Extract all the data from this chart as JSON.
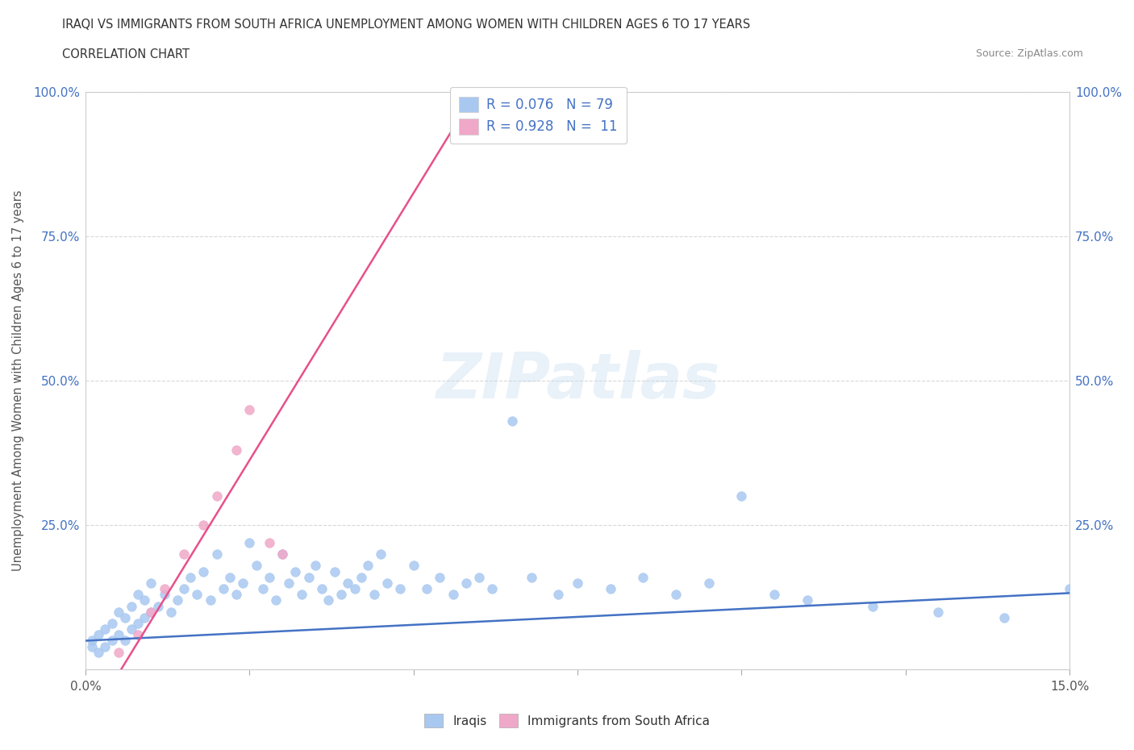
{
  "title": "IRAQI VS IMMIGRANTS FROM SOUTH AFRICA UNEMPLOYMENT AMONG WOMEN WITH CHILDREN AGES 6 TO 17 YEARS",
  "subtitle": "CORRELATION CHART",
  "source": "Source: ZipAtlas.com",
  "ylabel": "Unemployment Among Women with Children Ages 6 to 17 years",
  "xlim": [
    0.0,
    0.15
  ],
  "ylim": [
    0.0,
    1.0
  ],
  "iraqis_x": [
    0.001,
    0.001,
    0.002,
    0.002,
    0.003,
    0.003,
    0.004,
    0.004,
    0.005,
    0.005,
    0.006,
    0.006,
    0.007,
    0.007,
    0.008,
    0.008,
    0.009,
    0.009,
    0.01,
    0.01,
    0.011,
    0.012,
    0.013,
    0.014,
    0.015,
    0.016,
    0.017,
    0.018,
    0.019,
    0.02,
    0.021,
    0.022,
    0.023,
    0.024,
    0.025,
    0.026,
    0.027,
    0.028,
    0.029,
    0.03,
    0.031,
    0.032,
    0.033,
    0.034,
    0.035,
    0.036,
    0.037,
    0.038,
    0.039,
    0.04,
    0.041,
    0.042,
    0.043,
    0.044,
    0.045,
    0.046,
    0.048,
    0.05,
    0.052,
    0.054,
    0.056,
    0.058,
    0.06,
    0.062,
    0.065,
    0.068,
    0.072,
    0.075,
    0.08,
    0.085,
    0.09,
    0.095,
    0.1,
    0.105,
    0.11,
    0.12,
    0.13,
    0.14,
    0.15
  ],
  "iraqis_y": [
    0.04,
    0.05,
    0.03,
    0.06,
    0.04,
    0.07,
    0.05,
    0.08,
    0.06,
    0.1,
    0.05,
    0.09,
    0.07,
    0.11,
    0.08,
    0.13,
    0.09,
    0.12,
    0.1,
    0.15,
    0.11,
    0.13,
    0.1,
    0.12,
    0.14,
    0.16,
    0.13,
    0.17,
    0.12,
    0.2,
    0.14,
    0.16,
    0.13,
    0.15,
    0.22,
    0.18,
    0.14,
    0.16,
    0.12,
    0.2,
    0.15,
    0.17,
    0.13,
    0.16,
    0.18,
    0.14,
    0.12,
    0.17,
    0.13,
    0.15,
    0.14,
    0.16,
    0.18,
    0.13,
    0.2,
    0.15,
    0.14,
    0.18,
    0.14,
    0.16,
    0.13,
    0.15,
    0.16,
    0.14,
    0.43,
    0.16,
    0.13,
    0.15,
    0.14,
    0.16,
    0.13,
    0.15,
    0.3,
    0.13,
    0.12,
    0.11,
    0.1,
    0.09,
    0.14
  ],
  "sa_x": [
    0.005,
    0.008,
    0.01,
    0.012,
    0.015,
    0.018,
    0.02,
    0.023,
    0.025,
    0.028,
    0.03
  ],
  "sa_y": [
    0.03,
    0.06,
    0.1,
    0.14,
    0.2,
    0.25,
    0.3,
    0.38,
    0.45,
    0.22,
    0.2
  ],
  "iraqis_color": "#a8c8f0",
  "sa_color": "#f0a8c8",
  "iraqis_line_color": "#4472c4",
  "sa_line_color": "#e8508a",
  "R_iraqis": 0.076,
  "N_iraqis": 79,
  "R_sa": 0.928,
  "N_sa": 11,
  "grid_color": "#d8d8d8",
  "background_color": "#ffffff"
}
